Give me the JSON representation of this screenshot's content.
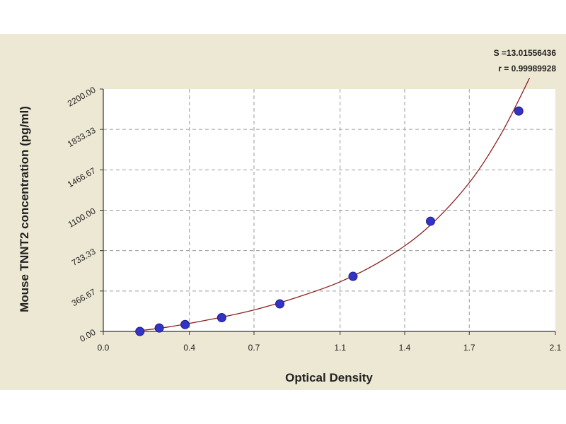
{
  "chart_data": {
    "type": "scatter",
    "title": "",
    "xlabel": "Optical Density",
    "ylabel": "Mouse TNNT2 concentration (pg/ml)",
    "xlim": [
      0.0,
      2.1
    ],
    "ylim": [
      0.0,
      2200.0
    ],
    "x_ticks": [
      0.0,
      0.4,
      0.7,
      1.1,
      1.4,
      1.7,
      2.1
    ],
    "x_tick_labels": [
      "0.0",
      "0.4",
      "0.7",
      "1.1",
      "1.4",
      "1.7",
      "2.1"
    ],
    "y_ticks": [
      0.0,
      366.67,
      733.33,
      1100.0,
      1466.67,
      1833.33,
      2200.0
    ],
    "y_tick_labels": [
      "0.00",
      "366.67",
      "733.33",
      "1100.00",
      "1466.67",
      "1833.33",
      "2200.00"
    ],
    "grid": true,
    "series": [
      {
        "type": "scatter",
        "x": [
          0.17,
          0.26,
          0.38,
          0.55,
          0.82,
          1.16,
          1.52,
          1.93
        ],
        "y": [
          0,
          31.25,
          62.5,
          125,
          250,
          500,
          1000,
          2000
        ]
      }
    ],
    "fit_curve": {
      "type": "line",
      "x": [
        0.14,
        0.3,
        0.5,
        0.7,
        0.9,
        1.1,
        1.3,
        1.5,
        1.7,
        1.85,
        1.98
      ],
      "y": [
        0,
        40,
        110,
        195,
        310,
        450,
        650,
        930,
        1350,
        1800,
        2300
      ]
    },
    "annotations": [
      "S =13.01556436",
      "r = 0.99989928"
    ]
  },
  "colors": {
    "panel": "#ede8d4",
    "plot_area": "#ffffff",
    "grid": "#9a9a9a",
    "points": "#3434c4",
    "curve": "#8b1f1f",
    "axis": "#333333"
  }
}
